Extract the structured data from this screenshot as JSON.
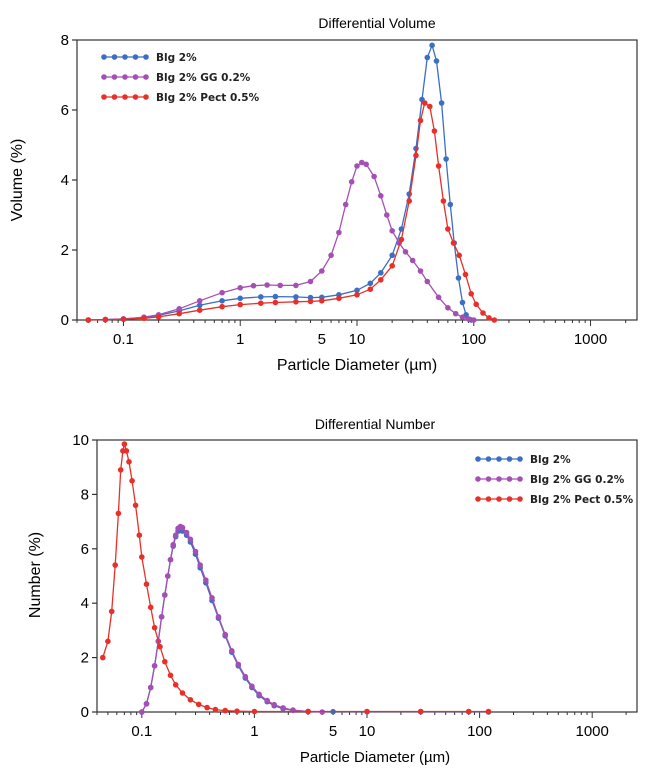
{
  "chart_data": [
    {
      "type": "line",
      "title": "Differential Volume",
      "xlabel": "Particle Diameter (µm)",
      "ylabel": "Volume (%)",
      "xscale": "log",
      "xlim": [
        0.04,
        2500
      ],
      "ylim": [
        0,
        8
      ],
      "x_ticks": [
        {
          "value": 0.1,
          "label": "0.1"
        },
        {
          "value": 1,
          "label": "1"
        },
        {
          "value": 5,
          "label": "5"
        },
        {
          "value": 10,
          "label": "10"
        },
        {
          "value": 100,
          "label": "100"
        },
        {
          "value": 1000,
          "label": "1000"
        }
      ],
      "y_ticks": [
        0,
        2,
        4,
        6,
        8
      ],
      "legend_position": "top-left",
      "grid": false,
      "series": [
        {
          "name": "Blg 2%",
          "color": "#3a6fc4",
          "points": [
            [
              0.05,
              0
            ],
            [
              0.07,
              0.01
            ],
            [
              0.1,
              0.03
            ],
            [
              0.15,
              0.07
            ],
            [
              0.2,
              0.13
            ],
            [
              0.3,
              0.26
            ],
            [
              0.45,
              0.42
            ],
            [
              0.7,
              0.55
            ],
            [
              1,
              0.62
            ],
            [
              1.5,
              0.66
            ],
            [
              2,
              0.67
            ],
            [
              3,
              0.66
            ],
            [
              4,
              0.64
            ],
            [
              5,
              0.65
            ],
            [
              7,
              0.72
            ],
            [
              10,
              0.85
            ],
            [
              13,
              1.05
            ],
            [
              16,
              1.35
            ],
            [
              20,
              1.85
            ],
            [
              24,
              2.6
            ],
            [
              28,
              3.6
            ],
            [
              32,
              4.9
            ],
            [
              36,
              6.3
            ],
            [
              40,
              7.5
            ],
            [
              44,
              7.85
            ],
            [
              48,
              7.4
            ],
            [
              53,
              6.2
            ],
            [
              58,
              4.6
            ],
            [
              63,
              3.3
            ],
            [
              68,
              2.2
            ],
            [
              74,
              1.2
            ],
            [
              80,
              0.5
            ],
            [
              86,
              0.15
            ],
            [
              92,
              0.02
            ],
            [
              95,
              0
            ]
          ]
        },
        {
          "name": "Blg 2% GG 0.2%",
          "color": "#a54fb5",
          "points": [
            [
              0.05,
              0
            ],
            [
              0.07,
              0.01
            ],
            [
              0.1,
              0.03
            ],
            [
              0.15,
              0.08
            ],
            [
              0.2,
              0.15
            ],
            [
              0.3,
              0.32
            ],
            [
              0.45,
              0.55
            ],
            [
              0.7,
              0.78
            ],
            [
              1,
              0.92
            ],
            [
              1.3,
              0.98
            ],
            [
              1.7,
              1.0
            ],
            [
              2.2,
              0.99
            ],
            [
              3,
              0.99
            ],
            [
              4,
              1.1
            ],
            [
              5,
              1.4
            ],
            [
              6,
              1.85
            ],
            [
              7,
              2.5
            ],
            [
              8,
              3.3
            ],
            [
              9,
              3.95
            ],
            [
              10,
              4.4
            ],
            [
              11,
              4.5
            ],
            [
              12,
              4.45
            ],
            [
              14,
              4.1
            ],
            [
              16,
              3.55
            ],
            [
              18,
              3.0
            ],
            [
              20,
              2.55
            ],
            [
              23,
              2.2
            ],
            [
              26,
              1.95
            ],
            [
              30,
              1.7
            ],
            [
              35,
              1.4
            ],
            [
              40,
              1.1
            ],
            [
              50,
              0.65
            ],
            [
              60,
              0.35
            ],
            [
              70,
              0.18
            ],
            [
              80,
              0.08
            ],
            [
              90,
              0.03
            ],
            [
              100,
              0
            ]
          ]
        },
        {
          "name": "Blg 2% Pect 0.5%",
          "color": "#e8302a",
          "points": [
            [
              0.05,
              0
            ],
            [
              0.07,
              0.01
            ],
            [
              0.1,
              0.02
            ],
            [
              0.15,
              0.05
            ],
            [
              0.2,
              0.09
            ],
            [
              0.3,
              0.18
            ],
            [
              0.45,
              0.28
            ],
            [
              0.7,
              0.38
            ],
            [
              1,
              0.44
            ],
            [
              1.5,
              0.48
            ],
            [
              2,
              0.5
            ],
            [
              3,
              0.52
            ],
            [
              4,
              0.53
            ],
            [
              5,
              0.55
            ],
            [
              7,
              0.62
            ],
            [
              10,
              0.72
            ],
            [
              13,
              0.88
            ],
            [
              16,
              1.15
            ],
            [
              20,
              1.55
            ],
            [
              24,
              2.3
            ],
            [
              28,
              3.4
            ],
            [
              32,
              4.7
            ],
            [
              35,
              5.7
            ],
            [
              38,
              6.2
            ],
            [
              42,
              6.1
            ],
            [
              46,
              5.4
            ],
            [
              50,
              4.4
            ],
            [
              55,
              3.4
            ],
            [
              60,
              2.6
            ],
            [
              67,
              2.2
            ],
            [
              75,
              1.85
            ],
            [
              85,
              1.3
            ],
            [
              95,
              0.75
            ],
            [
              105,
              0.45
            ],
            [
              120,
              0.2
            ],
            [
              135,
              0.06
            ],
            [
              150,
              0
            ]
          ]
        }
      ]
    },
    {
      "type": "line",
      "title": "Differential Number",
      "xlabel": "Particle Diameter (µm)",
      "ylabel": "Number (%)",
      "xscale": "log",
      "xlim": [
        0.04,
        2500
      ],
      "ylim": [
        0,
        10
      ],
      "x_ticks": [
        {
          "value": 0.1,
          "label": "0.1"
        },
        {
          "value": 1,
          "label": "1"
        },
        {
          "value": 5,
          "label": "5"
        },
        {
          "value": 10,
          "label": "10"
        },
        {
          "value": 100,
          "label": "100"
        },
        {
          "value": 1000,
          "label": "1000"
        }
      ],
      "y_ticks": [
        0,
        2,
        4,
        6,
        8,
        10
      ],
      "legend_position": "top-right",
      "grid": false,
      "series": [
        {
          "name": "Blg 2%",
          "color": "#3a6fc4",
          "points": [
            [
              0.1,
              0
            ],
            [
              0.11,
              0.3
            ],
            [
              0.12,
              0.9
            ],
            [
              0.13,
              1.7
            ],
            [
              0.14,
              2.6
            ],
            [
              0.15,
              3.5
            ],
            [
              0.16,
              4.3
            ],
            [
              0.17,
              5.0
            ],
            [
              0.18,
              5.6
            ],
            [
              0.19,
              6.1
            ],
            [
              0.2,
              6.45
            ],
            [
              0.21,
              6.65
            ],
            [
              0.22,
              6.7
            ],
            [
              0.23,
              6.65
            ],
            [
              0.25,
              6.5
            ],
            [
              0.27,
              6.25
            ],
            [
              0.3,
              5.8
            ],
            [
              0.33,
              5.3
            ],
            [
              0.37,
              4.75
            ],
            [
              0.42,
              4.1
            ],
            [
              0.48,
              3.45
            ],
            [
              0.55,
              2.8
            ],
            [
              0.63,
              2.2
            ],
            [
              0.72,
              1.7
            ],
            [
              0.83,
              1.25
            ],
            [
              0.95,
              0.9
            ],
            [
              1.1,
              0.6
            ],
            [
              1.3,
              0.38
            ],
            [
              1.5,
              0.23
            ],
            [
              1.8,
              0.12
            ],
            [
              2.2,
              0.06
            ],
            [
              3,
              0.02
            ],
            [
              5,
              0.01
            ],
            [
              10,
              0.01
            ],
            [
              30,
              0.01
            ],
            [
              80,
              0.01
            ],
            [
              120,
              0
            ]
          ]
        },
        {
          "name": "Blg 2% GG 0.2%",
          "color": "#a54fb5",
          "points": [
            [
              0.1,
              0
            ],
            [
              0.11,
              0.3
            ],
            [
              0.12,
              0.9
            ],
            [
              0.13,
              1.7
            ],
            [
              0.14,
              2.6
            ],
            [
              0.15,
              3.5
            ],
            [
              0.16,
              4.3
            ],
            [
              0.17,
              5.0
            ],
            [
              0.18,
              5.6
            ],
            [
              0.19,
              6.15
            ],
            [
              0.2,
              6.5
            ],
            [
              0.21,
              6.75
            ],
            [
              0.22,
              6.82
            ],
            [
              0.23,
              6.78
            ],
            [
              0.25,
              6.6
            ],
            [
              0.27,
              6.35
            ],
            [
              0.3,
              5.9
            ],
            [
              0.33,
              5.4
            ],
            [
              0.37,
              4.85
            ],
            [
              0.42,
              4.2
            ],
            [
              0.48,
              3.5
            ],
            [
              0.55,
              2.85
            ],
            [
              0.63,
              2.25
            ],
            [
              0.72,
              1.75
            ],
            [
              0.83,
              1.3
            ],
            [
              0.95,
              0.95
            ],
            [
              1.1,
              0.65
            ],
            [
              1.3,
              0.42
            ],
            [
              1.5,
              0.27
            ],
            [
              1.8,
              0.15
            ],
            [
              2.2,
              0.07
            ],
            [
              3,
              0.02
            ],
            [
              4,
              0
            ]
          ]
        },
        {
          "name": "Blg 2% Pect 0.5%",
          "color": "#e8302a",
          "points": [
            [
              0.045,
              2.0
            ],
            [
              0.05,
              2.6
            ],
            [
              0.054,
              3.7
            ],
            [
              0.058,
              5.4
            ],
            [
              0.062,
              7.3
            ],
            [
              0.065,
              8.9
            ],
            [
              0.068,
              9.6
            ],
            [
              0.07,
              9.85
            ],
            [
              0.073,
              9.6
            ],
            [
              0.077,
              9.2
            ],
            [
              0.082,
              8.5
            ],
            [
              0.088,
              7.6
            ],
            [
              0.095,
              6.5
            ],
            [
              0.1,
              5.7
            ],
            [
              0.11,
              4.7
            ],
            [
              0.12,
              3.85
            ],
            [
              0.13,
              3.1
            ],
            [
              0.145,
              2.4
            ],
            [
              0.16,
              1.85
            ],
            [
              0.18,
              1.35
            ],
            [
              0.2,
              1.0
            ],
            [
              0.23,
              0.7
            ],
            [
              0.27,
              0.45
            ],
            [
              0.32,
              0.28
            ],
            [
              0.38,
              0.16
            ],
            [
              0.45,
              0.09
            ],
            [
              0.55,
              0.05
            ],
            [
              0.7,
              0.03
            ],
            [
              1,
              0.02
            ],
            [
              3,
              0.02
            ],
            [
              10,
              0.02
            ],
            [
              30,
              0.02
            ],
            [
              80,
              0.02
            ],
            [
              120,
              0.02
            ]
          ]
        }
      ]
    }
  ]
}
